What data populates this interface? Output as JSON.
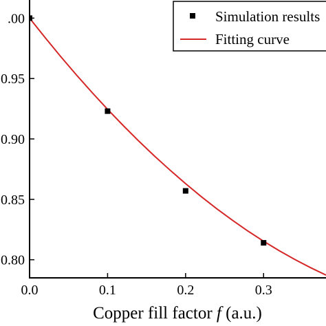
{
  "chart_data": {
    "type": "scatter",
    "xlabel_prefix": "Copper fill factor ",
    "xlabel_var": "f",
    "xlabel_suffix": " (a.u.)",
    "xlim": [
      0,
      0.38
    ],
    "ylim": [
      0.785,
      1.015
    ],
    "x_ticks": [
      "0.0",
      "0.1",
      "0.2",
      "0.3"
    ],
    "y_ticks": [
      "0.80",
      "0.85",
      "0.90",
      "0.95",
      ".00"
    ],
    "grid": false,
    "legend_position": "top-right",
    "series": [
      {
        "name": "Simulation results",
        "kind": "scatter",
        "color": "#000000",
        "x": [
          0.0,
          0.1,
          0.2,
          0.3
        ],
        "y": [
          1.0,
          0.923,
          0.857,
          0.814
        ]
      },
      {
        "name": "Fitting curve",
        "kind": "line",
        "color": "#d62728",
        "x": [
          0.0,
          0.02,
          0.04,
          0.06,
          0.08,
          0.1,
          0.12,
          0.14,
          0.16,
          0.18,
          0.2,
          0.22,
          0.24,
          0.26,
          0.28,
          0.3,
          0.32,
          0.34,
          0.36,
          0.38
        ],
        "y": [
          1.0,
          0.9838,
          0.9681,
          0.953,
          0.9385,
          0.9245,
          0.9111,
          0.8982,
          0.8859,
          0.8742,
          0.863,
          0.8523,
          0.8422,
          0.8327,
          0.8237,
          0.8153,
          0.8075,
          0.8002,
          0.7935,
          0.7873
        ]
      }
    ]
  }
}
